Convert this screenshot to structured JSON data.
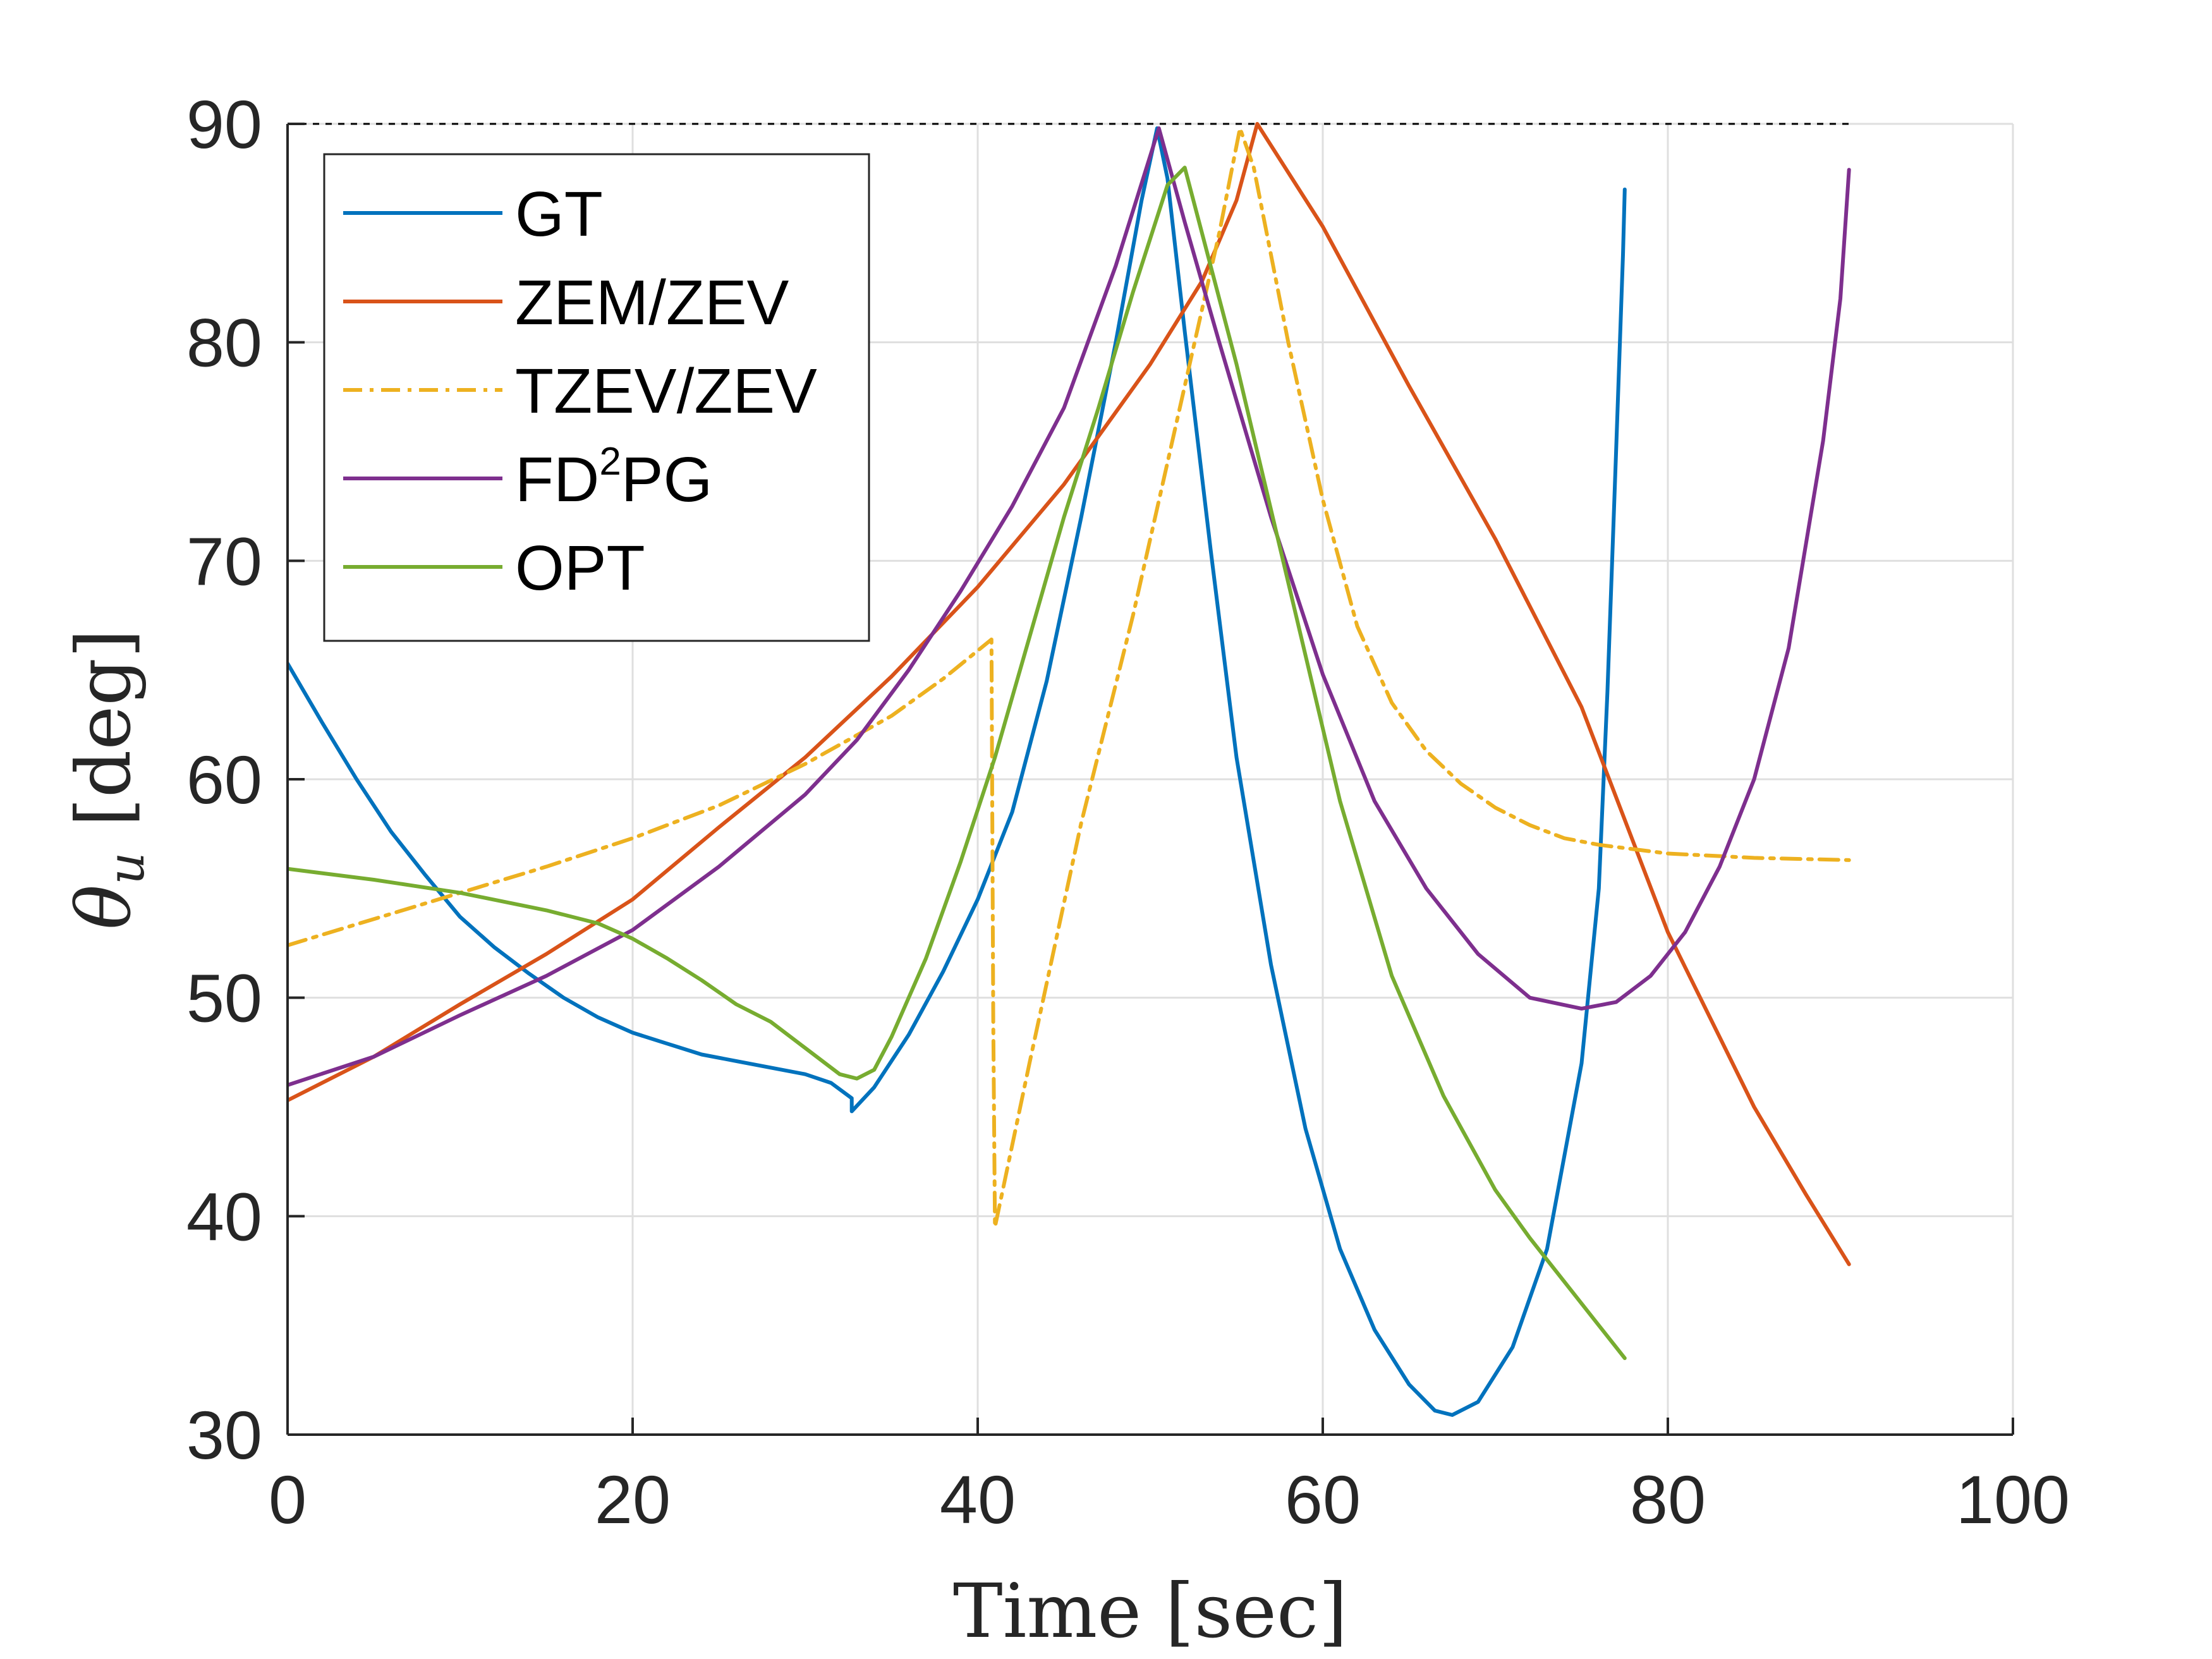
{
  "chart_data": {
    "type": "line",
    "xlabel": "Time [sec]",
    "ylabel": "θ_u [deg]",
    "ylabel_symbol": "θ",
    "ylabel_subscript": "u",
    "ylabel_unit": "[deg]",
    "xlim": [
      0,
      100
    ],
    "ylim": [
      30,
      90
    ],
    "xticks": [
      0,
      20,
      40,
      60,
      80,
      100
    ],
    "yticks": [
      30,
      40,
      50,
      60,
      70,
      80,
      90
    ],
    "xtick_labels": [
      "0",
      "20",
      "40",
      "60",
      "80",
      "100"
    ],
    "ytick_labels": [
      "30",
      "40",
      "50",
      "60",
      "70",
      "80",
      "90"
    ],
    "grid": true,
    "legend_position": "top-left",
    "reference_line": {
      "y": 90,
      "x_range": [
        0,
        90.5
      ],
      "style": "dashed",
      "color": "#000000"
    },
    "series": [
      {
        "name": "GT",
        "legend_label": "GT",
        "color": "#0072BD",
        "style": "solid",
        "points": [
          [
            0,
            65.3
          ],
          [
            2,
            62.6
          ],
          [
            4,
            60.0
          ],
          [
            6,
            57.6
          ],
          [
            8,
            55.6
          ],
          [
            10,
            53.7
          ],
          [
            12,
            52.3
          ],
          [
            14,
            51.1
          ],
          [
            16,
            50.0
          ],
          [
            18,
            49.1
          ],
          [
            20,
            48.4
          ],
          [
            22,
            47.9
          ],
          [
            24,
            47.4
          ],
          [
            26,
            47.1
          ],
          [
            28,
            46.8
          ],
          [
            30,
            46.5
          ],
          [
            31.5,
            46.1
          ],
          [
            32.7,
            45.4
          ],
          [
            32.7,
            44.8
          ],
          [
            34,
            45.9
          ],
          [
            36,
            48.3
          ],
          [
            38,
            51.2
          ],
          [
            40,
            54.5
          ],
          [
            42,
            58.5
          ],
          [
            44,
            64.5
          ],
          [
            46,
            72.0
          ],
          [
            48,
            80.0
          ],
          [
            49.5,
            86.5
          ],
          [
            50.4,
            89.8
          ],
          [
            51,
            87.5
          ],
          [
            52,
            80.5
          ],
          [
            53.5,
            70.5
          ],
          [
            55,
            61.0
          ],
          [
            57,
            51.5
          ],
          [
            59,
            44.0
          ],
          [
            61,
            38.5
          ],
          [
            63,
            34.8
          ],
          [
            65,
            32.3
          ],
          [
            66.5,
            31.1
          ],
          [
            67.5,
            30.9
          ],
          [
            69,
            31.5
          ],
          [
            71,
            34.0
          ],
          [
            73,
            38.5
          ],
          [
            75,
            47.0
          ],
          [
            76,
            55.0
          ],
          [
            76.5,
            64.0
          ],
          [
            77,
            75.0
          ],
          [
            77.4,
            84.0
          ],
          [
            77.5,
            87.0
          ]
        ]
      },
      {
        "name": "ZEM/ZEV",
        "legend_label": "ZEM/ZEV",
        "color": "#D95319",
        "style": "solid",
        "points": [
          [
            0,
            45.3
          ],
          [
            5,
            47.3
          ],
          [
            10,
            49.7
          ],
          [
            15,
            52.0
          ],
          [
            20,
            54.5
          ],
          [
            25,
            57.8
          ],
          [
            30,
            61.0
          ],
          [
            35,
            64.7
          ],
          [
            40,
            68.8
          ],
          [
            45,
            73.5
          ],
          [
            50,
            79.0
          ],
          [
            53,
            82.8
          ],
          [
            55,
            86.5
          ],
          [
            56.2,
            90.0
          ],
          [
            60,
            85.3
          ],
          [
            65,
            78.0
          ],
          [
            70,
            71.0
          ],
          [
            75,
            63.3
          ],
          [
            80,
            53.0
          ],
          [
            85,
            45.0
          ],
          [
            88,
            41.0
          ],
          [
            90.5,
            37.8
          ]
        ]
      },
      {
        "name": "TZEV/ZEV",
        "legend_label": "TZEV/ZEV",
        "color": "#EDB120",
        "style": "dashdot",
        "points": [
          [
            0,
            52.4
          ],
          [
            5,
            53.6
          ],
          [
            10,
            54.8
          ],
          [
            15,
            56.0
          ],
          [
            20,
            57.3
          ],
          [
            25,
            58.8
          ],
          [
            30,
            60.7
          ],
          [
            35,
            62.9
          ],
          [
            38,
            64.6
          ],
          [
            40.8,
            66.4
          ],
          [
            40.9,
            49.0
          ],
          [
            41,
            39.5
          ],
          [
            43,
            47.0
          ],
          [
            46,
            58.0
          ],
          [
            49,
            67.5
          ],
          [
            52,
            78.0
          ],
          [
            54,
            85.0
          ],
          [
            55.2,
            89.8
          ],
          [
            56,
            88.0
          ],
          [
            58,
            80.0
          ],
          [
            60,
            72.8
          ],
          [
            62,
            67.0
          ],
          [
            64,
            63.5
          ],
          [
            66,
            61.3
          ],
          [
            68,
            59.8
          ],
          [
            70,
            58.7
          ],
          [
            72,
            57.9
          ],
          [
            74,
            57.3
          ],
          [
            76,
            57.0
          ],
          [
            78,
            56.8
          ],
          [
            80,
            56.6
          ],
          [
            85,
            56.4
          ],
          [
            90.5,
            56.3
          ]
        ]
      },
      {
        "name": "FD²PG",
        "legend_label": "FD",
        "legend_sup": "2",
        "legend_suffix": "PG",
        "color": "#7E2F8E",
        "style": "solid",
        "points": [
          [
            0,
            46.0
          ],
          [
            5,
            47.3
          ],
          [
            10,
            49.2
          ],
          [
            15,
            51.0
          ],
          [
            20,
            53.1
          ],
          [
            25,
            56.0
          ],
          [
            30,
            59.3
          ],
          [
            33,
            61.8
          ],
          [
            36,
            65.0
          ],
          [
            39,
            68.6
          ],
          [
            42,
            72.5
          ],
          [
            45,
            77.0
          ],
          [
            48,
            83.5
          ],
          [
            50.5,
            89.8
          ],
          [
            52,
            85.5
          ],
          [
            54,
            80.0
          ],
          [
            57,
            72.0
          ],
          [
            60,
            64.8
          ],
          [
            63,
            59.0
          ],
          [
            66,
            55.0
          ],
          [
            69,
            52.0
          ],
          [
            72,
            50.0
          ],
          [
            75,
            49.5
          ],
          [
            77,
            49.8
          ],
          [
            79,
            51.0
          ],
          [
            81,
            53.0
          ],
          [
            83,
            56.0
          ],
          [
            85,
            60.0
          ],
          [
            87,
            66.0
          ],
          [
            89,
            75.5
          ],
          [
            90,
            82.0
          ],
          [
            90.5,
            87.9
          ]
        ]
      },
      {
        "name": "OPT",
        "legend_label": "OPT",
        "color": "#77AC30",
        "style": "solid",
        "points": [
          [
            0,
            55.9
          ],
          [
            5,
            55.4
          ],
          [
            10,
            54.8
          ],
          [
            15,
            54.0
          ],
          [
            18,
            53.4
          ],
          [
            20,
            52.7
          ],
          [
            22,
            51.8
          ],
          [
            24,
            50.8
          ],
          [
            26,
            49.7
          ],
          [
            28,
            48.9
          ],
          [
            30,
            47.7
          ],
          [
            32,
            46.5
          ],
          [
            33,
            46.3
          ],
          [
            34,
            46.7
          ],
          [
            35,
            48.2
          ],
          [
            37,
            51.8
          ],
          [
            39,
            56.2
          ],
          [
            41,
            61.0
          ],
          [
            43,
            66.5
          ],
          [
            45,
            72.0
          ],
          [
            47,
            77.0
          ],
          [
            49,
            82.3
          ],
          [
            51,
            87.2
          ],
          [
            52,
            88.0
          ],
          [
            53,
            85.0
          ],
          [
            55,
            79.0
          ],
          [
            58,
            69.0
          ],
          [
            61,
            59.0
          ],
          [
            64,
            51.0
          ],
          [
            67,
            45.5
          ],
          [
            70,
            41.2
          ],
          [
            72,
            39.0
          ],
          [
            74,
            37.0
          ],
          [
            76,
            35.0
          ],
          [
            77.5,
            33.5
          ]
        ]
      }
    ]
  }
}
